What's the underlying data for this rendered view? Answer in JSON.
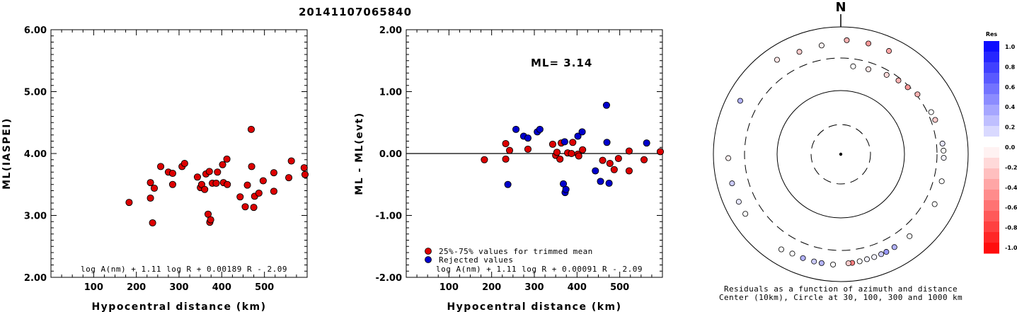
{
  "title": "20141107065840",
  "chart_data": [
    {
      "type": "scatter",
      "ylabel": "ML(IASPEI)",
      "xlabel": "Hypocentral distance (km)",
      "xlim": [
        0,
        600
      ],
      "ylim": [
        2.0,
        6.0
      ],
      "xticks": [
        "100",
        "200",
        "300",
        "400",
        "500"
      ],
      "yticks": [
        "2.00",
        "3.00",
        "4.00",
        "5.00",
        "6.00"
      ],
      "formula": "log A(nm) + 1.11 log R + 0.00189 R - 2.09",
      "series": [
        {
          "color": "#dd0000",
          "points": [
            [
              183,
              3.21
            ],
            [
              233,
              3.53
            ],
            [
              233,
              3.28
            ],
            [
              238,
              2.88
            ],
            [
              242,
              3.44
            ],
            [
              257,
              3.79
            ],
            [
              275,
              3.7
            ],
            [
              285,
              3.68
            ],
            [
              285,
              3.5
            ],
            [
              307,
              3.79
            ],
            [
              313,
              3.84
            ],
            [
              343,
              3.62
            ],
            [
              350,
              3.45
            ],
            [
              353,
              3.5
            ],
            [
              360,
              3.42
            ],
            [
              363,
              3.67
            ],
            [
              368,
              3.02
            ],
            [
              371,
              3.71
            ],
            [
              372,
              2.89
            ],
            [
              374,
              2.93
            ],
            [
              378,
              3.52
            ],
            [
              387,
              3.52
            ],
            [
              390,
              3.7
            ],
            [
              402,
              3.82
            ],
            [
              404,
              3.53
            ],
            [
              412,
              3.91
            ],
            [
              413,
              3.5
            ],
            [
              443,
              3.3
            ],
            [
              455,
              3.14
            ],
            [
              460,
              3.49
            ],
            [
              469,
              4.39
            ],
            [
              470,
              3.79
            ],
            [
              475,
              3.13
            ],
            [
              477,
              3.31
            ],
            [
              487,
              3.36
            ],
            [
              497,
              3.56
            ],
            [
              522,
              3.39
            ],
            [
              522,
              3.69
            ],
            [
              557,
              3.61
            ],
            [
              563,
              3.88
            ],
            [
              593,
              3.77
            ],
            [
              595,
              3.66
            ]
          ]
        }
      ]
    },
    {
      "type": "scatter",
      "ylabel": "ML - ML(evt)",
      "xlabel": "Hypocentral distance (km)",
      "xlim": [
        0,
        600
      ],
      "ylim": [
        -2.0,
        2.0
      ],
      "xticks": [
        "100",
        "200",
        "300",
        "400",
        "500"
      ],
      "yticks": [
        "-2.00",
        "-1.00",
        "0.00",
        "1.00",
        "2.00"
      ],
      "annotation": "ML= 3.14",
      "formula": "log A(nm) + 1.11 log R + 0.00091 R - 2.09",
      "legend": [
        "25%-75% values for trimmed mean",
        "Rejected values"
      ],
      "series": [
        {
          "name": "25%-75% values for trimmed mean",
          "color": "#dd0000",
          "points": [
            [
              183,
              -0.1
            ],
            [
              233,
              0.16
            ],
            [
              233,
              -0.09
            ],
            [
              242,
              0.05
            ],
            [
              285,
              0.07
            ],
            [
              343,
              0.15
            ],
            [
              350,
              -0.03
            ],
            [
              353,
              0.02
            ],
            [
              360,
              -0.09
            ],
            [
              363,
              0.17
            ],
            [
              378,
              0.01
            ],
            [
              387,
              0.0
            ],
            [
              390,
              0.18
            ],
            [
              402,
              -0.01
            ],
            [
              404,
              -0.04
            ],
            [
              413,
              0.06
            ],
            [
              460,
              -0.11
            ],
            [
              477,
              -0.16
            ],
            [
              487,
              -0.26
            ],
            [
              497,
              -0.08
            ],
            [
              522,
              -0.28
            ],
            [
              522,
              0.04
            ],
            [
              557,
              -0.1
            ],
            [
              595,
              0.03
            ]
          ]
        },
        {
          "name": "Rejected values",
          "color": "#0000cc",
          "points": [
            [
              238,
              -0.5
            ],
            [
              257,
              0.39
            ],
            [
              275,
              0.28
            ],
            [
              285,
              0.25
            ],
            [
              307,
              0.35
            ],
            [
              313,
              0.39
            ],
            [
              368,
              -0.49
            ],
            [
              371,
              0.19
            ],
            [
              372,
              -0.63
            ],
            [
              374,
              -0.58
            ],
            [
              402,
              0.28
            ],
            [
              412,
              0.35
            ],
            [
              443,
              -0.28
            ],
            [
              455,
              -0.45
            ],
            [
              469,
              0.78
            ],
            [
              470,
              0.18
            ],
            [
              475,
              -0.48
            ],
            [
              563,
              0.17
            ]
          ]
        }
      ]
    },
    {
      "type": "scatter",
      "title": "N",
      "caption_lines": [
        "Residuals as a function of azimuth and distance",
        "Center (10km), Circle at 30, 100, 300 and 1000 km"
      ],
      "colorbar": {
        "title": "Res",
        "ticks": [
          "1.0",
          "0.8",
          "0.6",
          "0.4",
          "0.2",
          "0.0",
          "-0.2",
          "-0.4",
          "-0.6",
          "-0.8",
          "-1.0"
        ]
      },
      "stations": [
        {
          "az": 8,
          "dist": 233,
          "res": 0.01
        },
        {
          "az": 18,
          "dist": 238,
          "res": -0.1
        },
        {
          "az": 30,
          "dist": 257,
          "res": -0.15
        },
        {
          "az": 38,
          "dist": 275,
          "res": -0.3
        },
        {
          "az": 45,
          "dist": 285,
          "res": -0.4
        },
        {
          "az": 52,
          "dist": 313,
          "res": -0.3
        },
        {
          "az": 65,
          "dist": 343,
          "res": 0.02
        },
        {
          "az": 70,
          "dist": 353,
          "res": -0.2
        },
        {
          "az": 84,
          "dist": 378,
          "res": 0.1
        },
        {
          "az": 88,
          "dist": 387,
          "res": 0.0
        },
        {
          "az": 92,
          "dist": 390,
          "res": 0.05
        },
        {
          "az": 105,
          "dist": 413,
          "res": 0.0
        },
        {
          "az": 118,
          "dist": 443,
          "res": 0.01
        },
        {
          "az": 140,
          "dist": 455,
          "res": 0.0
        },
        {
          "az": 150,
          "dist": 460,
          "res": 0.3
        },
        {
          "az": 155,
          "dist": 469,
          "res": 0.4
        },
        {
          "az": 158,
          "dist": 470,
          "res": 0.2
        },
        {
          "az": 162,
          "dist": 475,
          "res": 0.05
        },
        {
          "az": 166,
          "dist": 477,
          "res": 0.05
        },
        {
          "az": 170,
          "dist": 487,
          "res": 0.0
        },
        {
          "az": 174,
          "dist": 497,
          "res": -0.5
        },
        {
          "az": 176,
          "dist": 497,
          "res": -0.2
        },
        {
          "az": 184,
          "dist": 522,
          "res": 0.0
        },
        {
          "az": 190,
          "dist": 522,
          "res": 0.3
        },
        {
          "az": 194,
          "dist": 522,
          "res": 0.2
        },
        {
          "az": 200,
          "dist": 522,
          "res": 0.3
        },
        {
          "az": 206,
          "dist": 522,
          "res": 0.0
        },
        {
          "az": 212,
          "dist": 557,
          "res": 0.0
        },
        {
          "az": 238,
          "dist": 563,
          "res": 0.0
        },
        {
          "az": 245,
          "dist": 563,
          "res": 0.1
        },
        {
          "az": 255,
          "dist": 563,
          "res": 0.2
        },
        {
          "az": 268,
          "dist": 563,
          "res": -0.05
        },
        {
          "az": 298,
          "dist": 593,
          "res": 0.3
        },
        {
          "az": 326,
          "dist": 595,
          "res": -0.1
        },
        {
          "az": 338,
          "dist": 520,
          "res": -0.2
        },
        {
          "az": 350,
          "dist": 520,
          "res": -0.05
        },
        {
          "az": 3,
          "dist": 600,
          "res": -0.3
        },
        {
          "az": 14,
          "dist": 600,
          "res": -0.4
        },
        {
          "az": 25,
          "dist": 595,
          "res": -0.35
        }
      ]
    }
  ]
}
